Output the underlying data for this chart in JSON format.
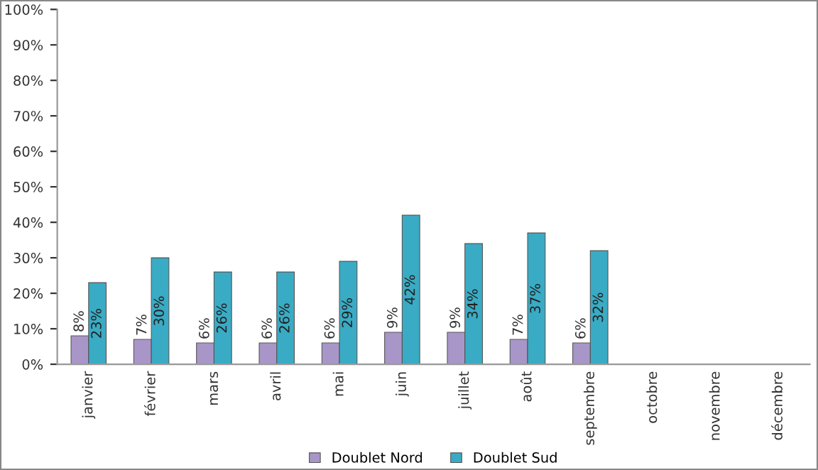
{
  "chart_data": {
    "type": "bar",
    "categories": [
      "janvier",
      "février",
      "mars",
      "avril",
      "mai",
      "juin",
      "juillet",
      "août",
      "septembre",
      "octobre",
      "novembre",
      "décembre"
    ],
    "series": [
      {
        "name": "Doublet Nord",
        "color": "#a996c8",
        "values": [
          8,
          7,
          6,
          6,
          6,
          9,
          9,
          7,
          6,
          null,
          null,
          null
        ],
        "value_labels": [
          "8%",
          "7%",
          "6%",
          "6%",
          "6%",
          "9%",
          "9%",
          "7%",
          "6%",
          null,
          null,
          null
        ]
      },
      {
        "name": "Doublet Sud",
        "color": "#3aabc4",
        "values": [
          23,
          30,
          26,
          26,
          29,
          42,
          34,
          37,
          32,
          null,
          null,
          null
        ],
        "value_labels": [
          "23%",
          "30%",
          "26%",
          "26%",
          "29%",
          "42%",
          "34%",
          "37%",
          "32%",
          null,
          null,
          null
        ]
      }
    ],
    "ylim": [
      0,
      100
    ],
    "yticks": [
      {
        "value": 0,
        "label": "0%"
      },
      {
        "value": 10,
        "label": "10%"
      },
      {
        "value": 20,
        "label": "20%"
      },
      {
        "value": 30,
        "label": "30%"
      },
      {
        "value": 40,
        "label": "40%"
      },
      {
        "value": 50,
        "label": "50%"
      },
      {
        "value": 60,
        "label": "60%"
      },
      {
        "value": 70,
        "label": "70%"
      },
      {
        "value": 80,
        "label": "80%"
      },
      {
        "value": 90,
        "label": "90%"
      },
      {
        "value": 100,
        "label": "100%"
      }
    ],
    "grid": false,
    "legend": "bottom"
  }
}
